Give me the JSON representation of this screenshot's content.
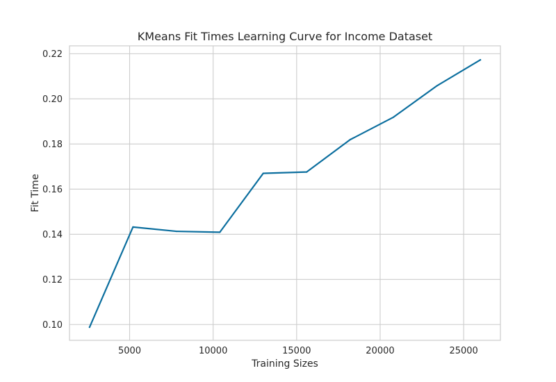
{
  "chart_data": {
    "type": "line",
    "title": "KMeans Fit Times Learning Curve for Income Dataset",
    "xlabel": "Training Sizes",
    "ylabel": "Fit Time",
    "xlim": [
      1400,
      27200
    ],
    "ylim": [
      0.093,
      0.2235
    ],
    "xticks": [
      5000,
      10000,
      15000,
      20000,
      25000
    ],
    "xtick_labels": [
      "5000",
      "10000",
      "15000",
      "20000",
      "25000"
    ],
    "yticks": [
      0.1,
      0.12,
      0.14,
      0.16,
      0.18,
      0.2,
      0.22
    ],
    "ytick_labels": [
      "0.10",
      "0.12",
      "0.14",
      "0.16",
      "0.18",
      "0.20",
      "0.22"
    ],
    "grid": true,
    "series": [
      {
        "color": "#0b6e9e",
        "x": [
          2600,
          5200,
          7800,
          10400,
          13000,
          15600,
          18200,
          20800,
          23400,
          26000
        ],
        "y": [
          0.0988,
          0.1432,
          0.1413,
          0.1409,
          0.167,
          0.1676,
          0.1819,
          0.1919,
          0.2058,
          0.2173
        ]
      }
    ]
  }
}
